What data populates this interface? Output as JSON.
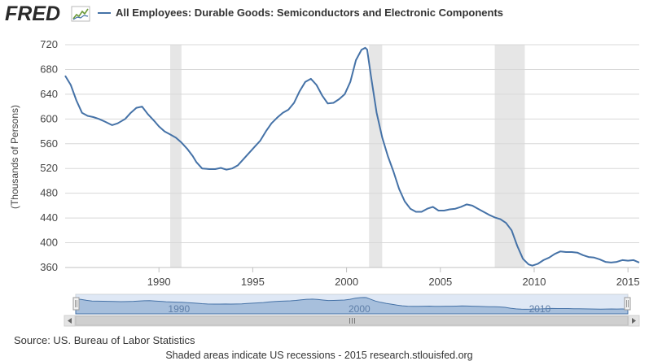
{
  "header": {
    "logo_text": "FRED",
    "logo_icon": "fred-line-chart-icon",
    "legend_label": "All Employees: Durable Goods: Semiconductors and Electronic Components"
  },
  "footer": {
    "source": "Source: US. Bureau of Labor Statistics",
    "note": "Shaded areas indicate US recessions - 2015 research.stlouisfed.org"
  },
  "navigator": {
    "labels": [
      "1990",
      "2000",
      "2010"
    ],
    "range_start": 1985.0,
    "range_end": 2015.6,
    "handle_icon": "grip-icon",
    "left_arrow_icon": "arrow-left-icon",
    "right_arrow_icon": "arrow-right-icon",
    "scroll_grip_icon": "scroll-grip-icon"
  },
  "colors": {
    "series": "#4572a7",
    "recession": "#e6e6e6",
    "grid": "#d8d8d8",
    "navigator_fill": "#a7bfdc",
    "navigator_mask": "#c5d6ec"
  },
  "chart_data": {
    "type": "line",
    "title": "",
    "xlabel": "",
    "ylabel": "(Thousands of Persons)",
    "xlim": [
      1985.0,
      2015.6
    ],
    "ylim": [
      360,
      720
    ],
    "y_ticks": [
      360,
      400,
      440,
      480,
      520,
      560,
      600,
      640,
      680,
      720
    ],
    "x_ticks": [
      "1990",
      "1995",
      "2000",
      "2005",
      "2010",
      "2015"
    ],
    "x_tick_values": [
      1990,
      1995,
      2000,
      2005,
      2010,
      2015
    ],
    "grid": true,
    "legend_position": "top-left",
    "recessions": [
      [
        1990.6,
        1991.2
      ],
      [
        2001.2,
        2001.9
      ],
      [
        2007.9,
        2009.5
      ]
    ],
    "series": [
      {
        "name": "All Employees: Durable Goods: Semiconductors and Electronic Components",
        "x": [
          1985.0,
          1985.3,
          1985.6,
          1985.9,
          1986.2,
          1986.5,
          1986.8,
          1987.1,
          1987.5,
          1987.8,
          1988.2,
          1988.5,
          1988.8,
          1989.1,
          1989.4,
          1989.8,
          1990.0,
          1990.3,
          1990.6,
          1990.9,
          1991.2,
          1991.5,
          1991.8,
          1992.0,
          1992.3,
          1992.7,
          1993.0,
          1993.3,
          1993.6,
          1993.9,
          1994.2,
          1994.5,
          1994.8,
          1995.1,
          1995.4,
          1995.7,
          1996.0,
          1996.3,
          1996.6,
          1996.9,
          1997.2,
          1997.5,
          1997.8,
          1998.1,
          1998.4,
          1998.7,
          1999.0,
          1999.3,
          1999.6,
          1999.9,
          2000.2,
          2000.5,
          2000.8,
          2001.0,
          2001.1,
          2001.3,
          2001.6,
          2001.9,
          2002.2,
          2002.5,
          2002.8,
          2003.1,
          2003.4,
          2003.7,
          2004.0,
          2004.3,
          2004.6,
          2004.9,
          2005.2,
          2005.5,
          2005.8,
          2006.1,
          2006.4,
          2006.7,
          2007.0,
          2007.3,
          2007.6,
          2007.9,
          2008.2,
          2008.5,
          2008.8,
          2009.1,
          2009.4,
          2009.7,
          2009.9,
          2010.2,
          2010.5,
          2010.8,
          2011.1,
          2011.4,
          2011.7,
          2012.0,
          2012.3,
          2012.6,
          2012.9,
          2013.2,
          2013.5,
          2013.8,
          2014.1,
          2014.4,
          2014.7,
          2015.0,
          2015.3,
          2015.6
        ],
        "y": [
          670,
          655,
          630,
          610,
          605,
          603,
          600,
          596,
          590,
          593,
          600,
          610,
          618,
          620,
          608,
          595,
          588,
          580,
          575,
          570,
          562,
          552,
          540,
          530,
          520,
          519,
          519,
          521,
          518,
          520,
          525,
          535,
          545,
          555,
          565,
          580,
          593,
          602,
          610,
          615,
          626,
          645,
          660,
          665,
          655,
          638,
          625,
          626,
          632,
          640,
          660,
          695,
          712,
          715,
          712,
          670,
          610,
          570,
          540,
          515,
          487,
          467,
          455,
          450,
          450,
          455,
          458,
          452,
          452,
          454,
          455,
          458,
          462,
          460,
          455,
          450,
          445,
          441,
          438,
          432,
          420,
          395,
          374,
          365,
          363,
          366,
          372,
          376,
          382,
          386,
          385,
          385,
          384,
          380,
          377,
          376,
          373,
          369,
          368,
          369,
          372,
          371,
          372,
          368
        ]
      }
    ]
  }
}
